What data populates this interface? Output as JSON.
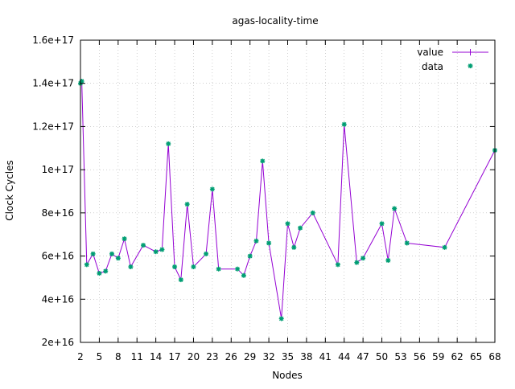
{
  "chart_data": {
    "type": "line",
    "title": "agas-locality-time",
    "xlabel": "Nodes",
    "ylabel": "Clock Cycles",
    "xlim": [
      2,
      68
    ],
    "ylim": [
      2e+16,
      1.6e+17
    ],
    "xticks": [
      2,
      5,
      8,
      11,
      14,
      17,
      20,
      23,
      26,
      29,
      32,
      35,
      38,
      41,
      44,
      47,
      50,
      53,
      56,
      59,
      62,
      65,
      68
    ],
    "xtick_labels": [
      "2",
      "5",
      "8",
      "11",
      "14",
      "17",
      "20",
      "23",
      "26",
      "29",
      "32",
      "35",
      "38",
      "41",
      "44",
      "47",
      "50",
      "53",
      "56",
      "59",
      "62",
      "65",
      "68"
    ],
    "yticks": [
      2e+16,
      4e+16,
      6e+16,
      8e+16,
      1e+17,
      1.2e+17,
      1.4e+17,
      1.6e+17
    ],
    "ytick_labels": [
      "2e+16",
      "4e+16",
      "6e+16",
      "8e+16",
      "1e+17",
      "1.2e+17",
      "1.4e+17",
      "1.6e+17"
    ],
    "grid": true,
    "legend_position": "top-right",
    "line_color": "#9400d3",
    "marker_color": "#009e73",
    "series": [
      {
        "name": "value",
        "style": "line",
        "x": [
          2,
          2.2,
          3,
          4,
          5,
          6,
          7,
          8,
          9,
          10,
          12,
          14,
          15,
          16,
          17,
          18,
          19,
          20,
          22,
          23,
          24,
          27,
          28,
          29,
          30,
          31,
          32,
          34,
          35,
          36,
          37,
          39,
          43,
          44,
          46,
          47,
          50,
          51,
          52,
          54,
          60,
          68
        ],
        "y": [
          1.4e+17,
          1.41e+17,
          5.6e+16,
          6.1e+16,
          5.2e+16,
          5.3e+16,
          6.1e+16,
          5.9e+16,
          6.8e+16,
          5.5e+16,
          6.5e+16,
          6.2e+16,
          6.3e+16,
          1.12e+17,
          5.5e+16,
          4.9e+16,
          8.4e+16,
          5.5e+16,
          6.1e+16,
          9.1e+16,
          5.4e+16,
          5.4e+16,
          5.1e+16,
          6e+16,
          6.7e+16,
          1.04e+17,
          6.6e+16,
          3.1e+16,
          7.5e+16,
          6.4e+16,
          7.3e+16,
          8e+16,
          5.6e+16,
          1.21e+17,
          5.7e+16,
          5.9e+16,
          7.5e+16,
          5.8e+16,
          8.2e+16,
          6.6e+16,
          6.4e+16,
          1.09e+17
        ]
      },
      {
        "name": "data",
        "style": "points",
        "x": [
          2,
          2.2,
          3,
          4,
          5,
          6,
          7,
          8,
          9,
          10,
          12,
          14,
          15,
          16,
          17,
          18,
          19,
          20,
          22,
          23,
          24,
          27,
          28,
          29,
          30,
          31,
          32,
          34,
          35,
          36,
          37,
          39,
          43,
          44,
          46,
          47,
          50,
          51,
          52,
          54,
          60,
          68
        ],
        "y": [
          1.4e+17,
          1.41e+17,
          5.6e+16,
          6.1e+16,
          5.2e+16,
          5.3e+16,
          6.1e+16,
          5.9e+16,
          6.8e+16,
          5.5e+16,
          6.5e+16,
          6.2e+16,
          6.3e+16,
          1.12e+17,
          5.5e+16,
          4.9e+16,
          8.4e+16,
          5.5e+16,
          6.1e+16,
          9.1e+16,
          5.4e+16,
          5.4e+16,
          5.1e+16,
          6e+16,
          6.7e+16,
          1.04e+17,
          6.6e+16,
          3.1e+16,
          7.5e+16,
          6.4e+16,
          7.3e+16,
          8e+16,
          5.6e+16,
          1.21e+17,
          5.7e+16,
          5.9e+16,
          7.5e+16,
          5.8e+16,
          8.2e+16,
          6.6e+16,
          6.4e+16,
          1.09e+17
        ]
      }
    ]
  }
}
